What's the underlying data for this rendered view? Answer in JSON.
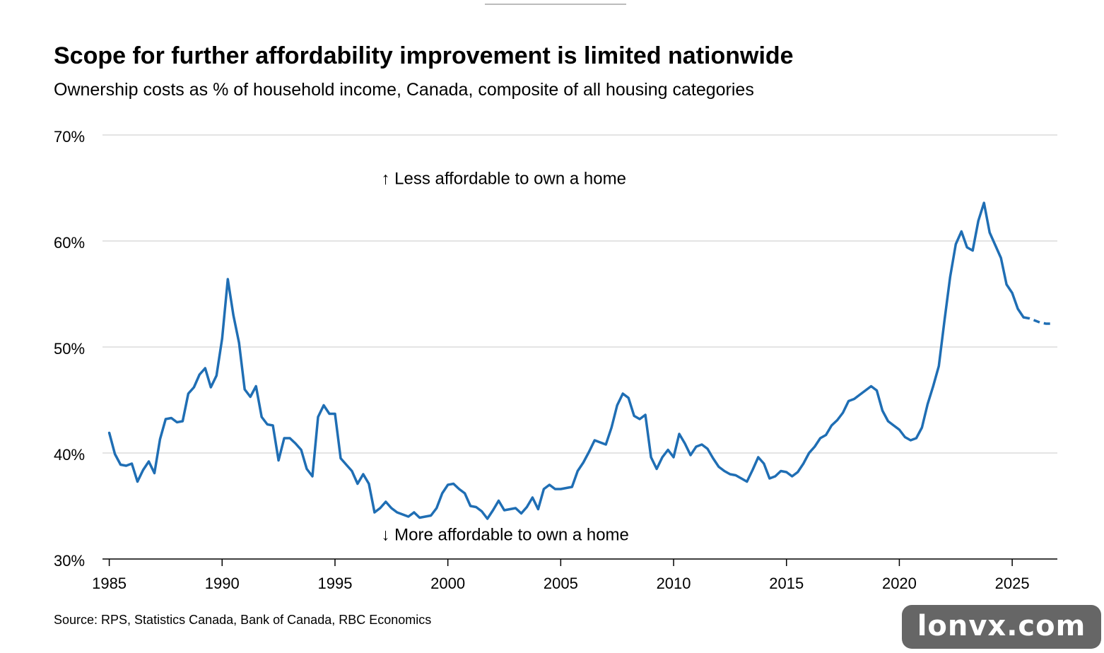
{
  "title": "Scope for further affordability improvement is limited nationwide",
  "subtitle": "Ownership costs as % of household income, Canada, composite of all housing categories",
  "source": "Source: RPS, Statistics Canada, Bank of Canada, RBC Economics",
  "watermark": "lonvx.com",
  "colors": {
    "line": "#1f6eb4",
    "grid": "#dcdcdc",
    "axis": "#000000"
  },
  "chart_data": {
    "type": "line",
    "title": "Scope for further affordability improvement is limited nationwide",
    "subtitle": "Ownership costs as % of household income, Canada, composite of all housing categories",
    "xlabel": "",
    "ylabel": "",
    "xlim": [
      1984.7,
      2027.0
    ],
    "ylim": [
      30,
      70
    ],
    "grid": true,
    "x_ticks": [
      1985,
      1990,
      1995,
      2000,
      2005,
      2010,
      2015,
      2020,
      2025
    ],
    "x_tick_labels": [
      "1985",
      "1990",
      "1995",
      "2000",
      "2005",
      "2010",
      "2015",
      "2020",
      "2025"
    ],
    "y_ticks": [
      30,
      40,
      50,
      60,
      70
    ],
    "y_tick_labels": [
      "30%",
      "40%",
      "50%",
      "60%",
      "70%"
    ],
    "annotations": [
      {
        "text": "↑ Less affordable to own a home",
        "x": 2003.0,
        "y": 65.9
      },
      {
        "text": "↓ More affordable to own a home",
        "x": 2003.0,
        "y": 32.3
      }
    ],
    "series": [
      {
        "style": "solid",
        "x": [
          1985.0,
          1985.25,
          1985.5,
          1985.75,
          1986.0,
          1986.25,
          1986.5,
          1986.75,
          1987.0,
          1987.25,
          1987.5,
          1987.75,
          1988.0,
          1988.25,
          1988.5,
          1988.75,
          1989.0,
          1989.25,
          1989.5,
          1989.75,
          1990.0,
          1990.25,
          1990.5,
          1990.75,
          1991.0,
          1991.25,
          1991.5,
          1991.75,
          1992.0,
          1992.25,
          1992.5,
          1992.75,
          1993.0,
          1993.25,
          1993.5,
          1993.75,
          1994.0,
          1994.25,
          1994.5,
          1994.75,
          1995.0,
          1995.25,
          1995.5,
          1995.75,
          1996.0,
          1996.25,
          1996.5,
          1996.75,
          1997.0,
          1997.25,
          1997.5,
          1997.75,
          1998.0,
          1998.25,
          1998.5,
          1998.75,
          1999.0,
          1999.25,
          1999.5,
          1999.75,
          2000.0,
          2000.25,
          2000.5,
          2000.75,
          2001.0,
          2001.25,
          2001.5,
          2001.75,
          2002.0,
          2002.25,
          2002.5,
          2002.75,
          2003.0,
          2003.25,
          2003.5,
          2003.75,
          2004.0,
          2004.25,
          2004.5,
          2004.75,
          2005.0,
          2005.25,
          2005.5,
          2005.75,
          2006.0,
          2006.25,
          2006.5,
          2006.75,
          2007.0,
          2007.25,
          2007.5,
          2007.75,
          2008.0,
          2008.25,
          2008.5,
          2008.75,
          2009.0,
          2009.25,
          2009.5,
          2009.75,
          2010.0,
          2010.25,
          2010.5,
          2010.75,
          2011.0,
          2011.25,
          2011.5,
          2011.75,
          2012.0,
          2012.25,
          2012.5,
          2012.75,
          2013.0,
          2013.25,
          2013.5,
          2013.75,
          2014.0,
          2014.25,
          2014.5,
          2014.75,
          2015.0,
          2015.25,
          2015.5,
          2015.75,
          2016.0,
          2016.25,
          2016.5,
          2016.75,
          2017.0,
          2017.25,
          2017.5,
          2017.75,
          2018.0,
          2018.25,
          2018.5,
          2018.75,
          2019.0,
          2019.25,
          2019.5,
          2019.75,
          2020.0,
          2020.25,
          2020.5,
          2020.75,
          2021.0,
          2021.25,
          2021.5,
          2021.75,
          2022.0,
          2022.25,
          2022.5,
          2022.75,
          2023.0,
          2023.25,
          2023.5,
          2023.75,
          2024.0,
          2024.25,
          2024.5,
          2024.75,
          2025.0,
          2025.25,
          2025.5
        ],
        "y": [
          41.9,
          39.9,
          38.9,
          38.8,
          39.0,
          37.3,
          38.4,
          39.2,
          38.1,
          41.3,
          43.2,
          43.3,
          42.9,
          43.0,
          45.6,
          46.2,
          47.4,
          48.0,
          46.2,
          47.3,
          50.8,
          56.4,
          53.0,
          50.4,
          46.0,
          45.3,
          46.3,
          43.4,
          42.7,
          42.6,
          39.3,
          41.4,
          41.4,
          40.9,
          40.3,
          38.5,
          37.8,
          43.4,
          44.5,
          43.7,
          43.7,
          39.5,
          38.9,
          38.3,
          37.1,
          38.0,
          37.1,
          34.4,
          34.8,
          35.4,
          34.8,
          34.4,
          34.2,
          34.0,
          34.4,
          33.9,
          34.0,
          34.1,
          34.8,
          36.2,
          37.0,
          37.1,
          36.6,
          36.2,
          35.0,
          34.9,
          34.5,
          33.8,
          34.6,
          35.5,
          34.6,
          34.7,
          34.8,
          34.3,
          34.9,
          35.8,
          34.7,
          36.6,
          37.0,
          36.6,
          36.6,
          36.7,
          36.8,
          38.3,
          39.1,
          40.1,
          41.2,
          41.0,
          40.8,
          42.4,
          44.5,
          45.6,
          45.2,
          43.5,
          43.2,
          43.6,
          39.6,
          38.5,
          39.6,
          40.3,
          39.6,
          41.8,
          40.9,
          39.8,
          40.6,
          40.8,
          40.4,
          39.5,
          38.7,
          38.3,
          38.0,
          37.9,
          37.6,
          37.3,
          38.4,
          39.6,
          39.0,
          37.6,
          37.8,
          38.3,
          38.2,
          37.8,
          38.2,
          39.0,
          40.0,
          40.6,
          41.4,
          41.7,
          42.6,
          43.1,
          43.8,
          44.9,
          45.1,
          45.5,
          45.9,
          46.3,
          45.9,
          44.0,
          43.0,
          42.6,
          42.2,
          41.5,
          41.2,
          41.4,
          42.4,
          44.6,
          46.3,
          48.2,
          52.5,
          56.6,
          59.7,
          60.9,
          59.4,
          59.1,
          61.9,
          63.6,
          60.8,
          59.6,
          58.4,
          55.9,
          55.1,
          53.6,
          52.8
        ]
      },
      {
        "style": "dashed",
        "label": "forecast",
        "x": [
          2025.5,
          2025.75,
          2026.0,
          2026.25,
          2026.5,
          2026.75
        ],
        "y": [
          52.8,
          52.7,
          52.5,
          52.3,
          52.2,
          52.2
        ]
      }
    ]
  }
}
